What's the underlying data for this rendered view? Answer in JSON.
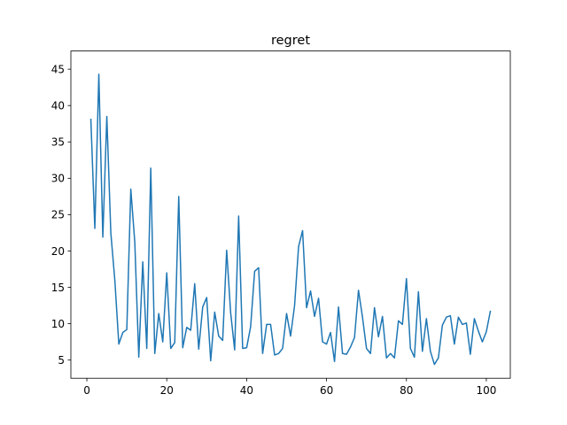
{
  "chart_data": {
    "type": "line",
    "title": "regret",
    "xlabel": "",
    "ylabel": "",
    "xlim": [
      -4,
      106
    ],
    "ylim": [
      2.5,
      47.5
    ],
    "xticks": [
      0,
      20,
      40,
      60,
      80,
      100
    ],
    "yticks": [
      5,
      10,
      15,
      20,
      25,
      30,
      35,
      40,
      45
    ],
    "grid": false,
    "series": [
      {
        "color": "#1f77b4",
        "x": [
          1,
          2,
          3,
          4,
          5,
          6,
          7,
          8,
          9,
          10,
          11,
          12,
          13,
          14,
          15,
          16,
          17,
          18,
          19,
          20,
          21,
          22,
          23,
          24,
          25,
          26,
          27,
          28,
          29,
          30,
          31,
          32,
          33,
          34,
          35,
          36,
          37,
          38,
          39,
          40,
          41,
          42,
          43,
          44,
          45,
          46,
          47,
          48,
          49,
          50,
          51,
          52,
          53,
          54,
          55,
          56,
          57,
          58,
          59,
          60,
          61,
          62,
          63,
          64,
          65,
          66,
          67,
          68,
          69,
          70,
          71,
          72,
          73,
          74,
          75,
          76,
          77,
          78,
          79,
          80,
          81,
          82,
          83,
          84,
          85,
          86,
          87,
          88,
          89,
          90,
          91,
          92,
          93,
          94,
          95,
          96,
          97,
          98,
          99,
          100,
          101
        ],
        "values": [
          38.1,
          23.1,
          44.3,
          21.9,
          38.5,
          22.5,
          16.0,
          7.2,
          8.8,
          9.2,
          28.5,
          21.2,
          5.4,
          18.5,
          6.6,
          31.4,
          5.9,
          11.4,
          7.5,
          17.0,
          6.6,
          7.4,
          27.5,
          6.7,
          9.5,
          9.1,
          15.5,
          6.5,
          12.3,
          13.6,
          4.9,
          11.6,
          8.3,
          7.7,
          20.1,
          11.5,
          6.4,
          24.8,
          6.6,
          6.7,
          9.6,
          17.2,
          17.7,
          5.9,
          9.9,
          9.9,
          5.7,
          5.9,
          6.6,
          11.4,
          8.3,
          12.5,
          20.6,
          22.8,
          12.2,
          14.5,
          11.0,
          13.5,
          7.5,
          7.2,
          8.8,
          4.8,
          12.3,
          5.9,
          5.8,
          6.8,
          8.1,
          14.6,
          10.9,
          6.6,
          5.9,
          12.2,
          8.2,
          11.0,
          5.3,
          5.9,
          5.3,
          10.4,
          9.9,
          16.2,
          6.6,
          5.4,
          14.4,
          6.2,
          10.7,
          6.2,
          4.4,
          5.3,
          9.8,
          10.9,
          11.1,
          7.2,
          10.9,
          9.9,
          10.1,
          5.8,
          10.7,
          9.0,
          7.5,
          8.9,
          11.7
        ]
      }
    ]
  }
}
